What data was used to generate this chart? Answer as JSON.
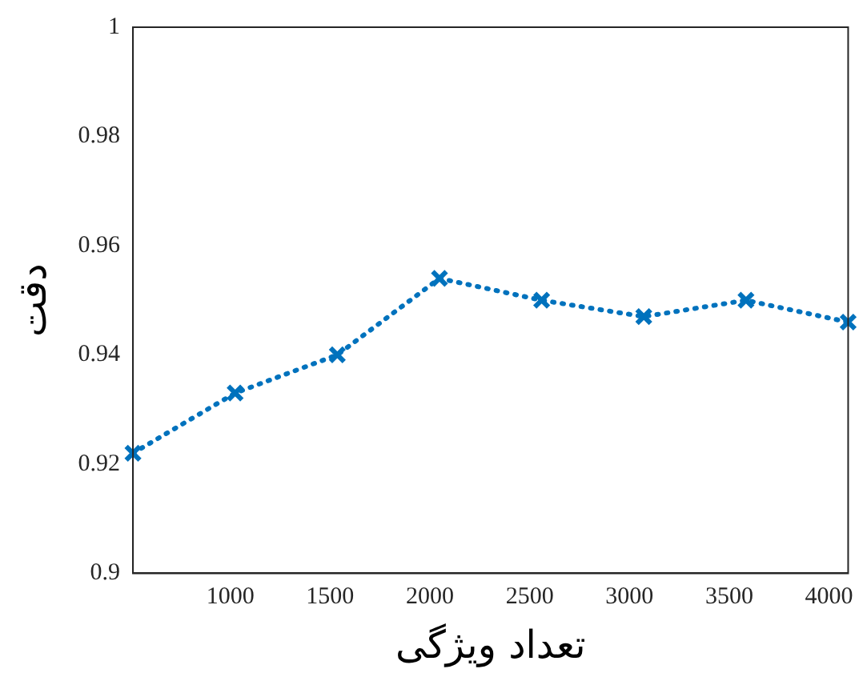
{
  "chart_data": {
    "type": "line",
    "xlabel": "تعداد ویژگی",
    "ylabel": "دقت",
    "x": [
      512,
      1024,
      1536,
      2048,
      2560,
      3072,
      3584,
      4096
    ],
    "series": [
      {
        "color": "#0072bd",
        "values": [
          0.922,
          0.933,
          0.94,
          0.954,
          0.95,
          0.947,
          0.95,
          0.946
        ]
      }
    ],
    "xlim": [
      512,
      4096
    ],
    "xticks": [
      1000,
      1500,
      2000,
      2500,
      3000,
      3500,
      4000
    ],
    "ylim": [
      0.9,
      1
    ],
    "yticks": [
      0.9,
      0.92,
      0.94,
      0.96,
      0.98,
      1
    ],
    "grid": false,
    "legend": false,
    "marker": "cross",
    "line_style": "dotted"
  }
}
